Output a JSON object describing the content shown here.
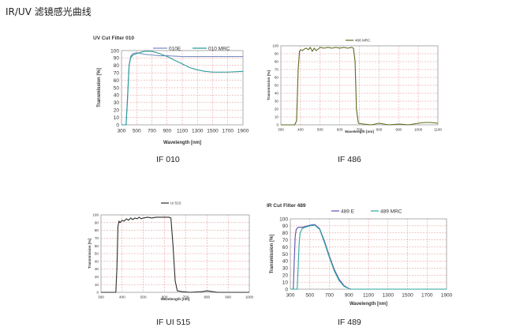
{
  "page": {
    "title": "IR/UV 滤镜感光曲线"
  },
  "captions": [
    "IF 010",
    "IF 486",
    "IF UI 515",
    "IF 489"
  ],
  "chart_data": [
    {
      "type": "line",
      "title": "UV Cut Filter 010",
      "xlabel": "Wavelength [nm]",
      "ylabel": "Transmission [%]",
      "xlim": [
        300,
        1900
      ],
      "ylim": [
        0,
        100
      ],
      "x_ticks": [
        300,
        500,
        700,
        900,
        1100,
        1300,
        1500,
        1700,
        1900
      ],
      "y_ticks": [
        0,
        10,
        20,
        30,
        40,
        50,
        60,
        70,
        80,
        90,
        100
      ],
      "grid": true,
      "legend_position": "top-right",
      "series": [
        {
          "name": "010E",
          "color": "#7a8fc0",
          "x": [
            300,
            360,
            380,
            400,
            420,
            450,
            500,
            550,
            600,
            700,
            800,
            900,
            1100,
            1300,
            1500,
            1700,
            1900
          ],
          "y": [
            0,
            0,
            40,
            80,
            92,
            96,
            97,
            96,
            95,
            94,
            93,
            93,
            92,
            92,
            92,
            92,
            92
          ]
        },
        {
          "name": "010 MRC",
          "color": "#2a9d9a",
          "x": [
            300,
            360,
            380,
            400,
            420,
            450,
            500,
            600,
            700,
            800,
            900,
            1000,
            1100,
            1200,
            1300,
            1400,
            1500,
            1700,
            1900
          ],
          "y": [
            0,
            0,
            35,
            80,
            90,
            94,
            96,
            99,
            99,
            96,
            92,
            87,
            82,
            77,
            74,
            72,
            71,
            71,
            72
          ]
        }
      ]
    },
    {
      "type": "line",
      "title": "",
      "xlabel": "Wavelength [nm]",
      "ylabel": "Transmission [%]",
      "xlim": [
        300,
        1100
      ],
      "ylim": [
        0,
        100
      ],
      "x_ticks": [
        300,
        400,
        500,
        600,
        700,
        800,
        900,
        1000,
        1100
      ],
      "y_ticks": [
        0,
        10,
        20,
        30,
        40,
        50,
        60,
        70,
        80,
        90,
        100
      ],
      "grid": true,
      "legend_position": "top-center",
      "series": [
        {
          "name": "486 MRC",
          "color": "#5b6b1e",
          "x": [
            300,
            370,
            380,
            388,
            395,
            400,
            410,
            420,
            430,
            440,
            450,
            460,
            470,
            480,
            490,
            500,
            520,
            540,
            560,
            580,
            600,
            620,
            640,
            660,
            670,
            678,
            685,
            695,
            720,
            760,
            800,
            850,
            900,
            950,
            1000,
            1030,
            1060,
            1100
          ],
          "y": [
            0,
            0,
            5,
            70,
            93,
            95,
            94,
            96,
            97,
            95,
            98,
            93,
            97,
            94,
            96,
            98,
            97,
            98,
            97,
            98,
            97,
            98,
            97,
            98,
            97,
            80,
            20,
            2,
            1,
            0,
            2,
            0,
            1,
            0,
            2,
            3,
            3,
            2
          ]
        }
      ]
    },
    {
      "type": "line",
      "title": "",
      "xlabel": "Wavelength [nm]",
      "ylabel": "Transmission [%]",
      "xlim": [
        300,
        1000
      ],
      "ylim": [
        0,
        100
      ],
      "x_ticks": [
        300,
        400,
        500,
        600,
        700,
        800,
        900,
        1000
      ],
      "y_ticks": [
        0,
        10,
        20,
        30,
        40,
        50,
        60,
        70,
        80,
        90,
        100
      ],
      "grid": true,
      "legend_position": "top-center",
      "series": [
        {
          "name": "UI 515",
          "color": "#2e2e2e",
          "x": [
            300,
            370,
            375,
            380,
            385,
            390,
            400,
            410,
            420,
            430,
            440,
            450,
            460,
            470,
            480,
            490,
            500,
            520,
            540,
            560,
            580,
            600,
            620,
            630,
            640,
            650,
            660,
            680,
            720,
            780,
            800,
            850,
            900,
            1000
          ],
          "y": [
            0,
            0,
            30,
            85,
            92,
            90,
            93,
            92,
            95,
            93,
            96,
            94,
            96,
            95,
            97,
            95,
            96,
            97,
            96,
            97,
            97,
            97,
            97,
            96,
            60,
            15,
            2,
            1,
            0,
            1,
            2,
            0,
            0,
            0
          ]
        }
      ]
    },
    {
      "type": "line",
      "title": "IR Cut Filter 489",
      "xlabel": "Wavelength [nm]",
      "ylabel": "Transmission [%]",
      "xlim": [
        300,
        1900
      ],
      "ylim": [
        0,
        100
      ],
      "x_ticks": [
        300,
        500,
        700,
        900,
        1100,
        1300,
        1500,
        1700,
        1900
      ],
      "y_ticks": [
        0,
        10,
        20,
        30,
        40,
        50,
        60,
        70,
        80,
        90,
        100
      ],
      "grid": true,
      "legend_position": "top-center",
      "series": [
        {
          "name": "489 E",
          "color": "#5a4fb0",
          "x": [
            300,
            330,
            340,
            350,
            360,
            380,
            420,
            450,
            500,
            550,
            600,
            650,
            700,
            750,
            800,
            850,
            900,
            920,
            1900
          ],
          "y": [
            0,
            0,
            40,
            75,
            85,
            88,
            88,
            89,
            91,
            92,
            86,
            68,
            47,
            28,
            14,
            5,
            1,
            0,
            0
          ]
        },
        {
          "name": "489 MRC",
          "color": "#2aa69b",
          "x": [
            300,
            370,
            380,
            390,
            400,
            420,
            450,
            500,
            550,
            600,
            650,
            700,
            750,
            800,
            850,
            900,
            920,
            1900
          ],
          "y": [
            0,
            0,
            30,
            65,
            80,
            86,
            88,
            90,
            91,
            85,
            66,
            45,
            26,
            12,
            4,
            1,
            0,
            0
          ]
        }
      ]
    }
  ]
}
